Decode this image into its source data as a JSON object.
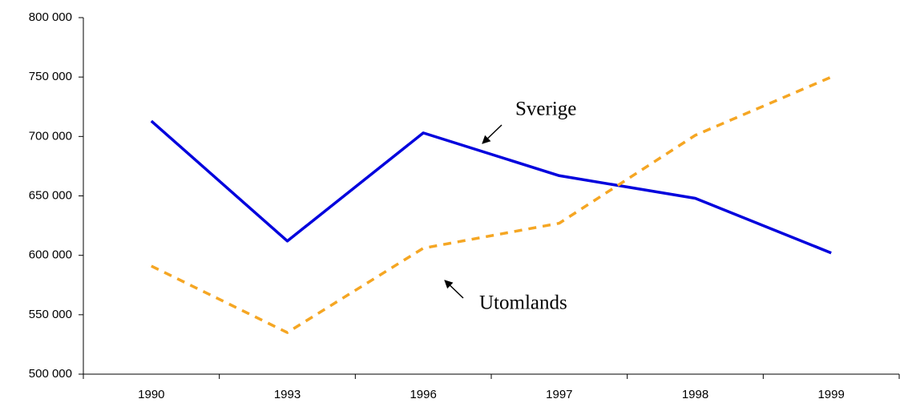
{
  "chart_data": {
    "type": "line",
    "categories": [
      "1990",
      "1993",
      "1996",
      "1997",
      "1998",
      "1999"
    ],
    "series": [
      {
        "name": "Sverige",
        "color": "#0000dd",
        "dash": false,
        "values": [
          713000,
          612000,
          703000,
          667000,
          648000,
          602000
        ]
      },
      {
        "name": "Utomlands",
        "color": "#f5a623",
        "dash": true,
        "values": [
          591000,
          535000,
          606000,
          627000,
          701000,
          750000
        ]
      }
    ],
    "ylim": [
      500000,
      800000
    ],
    "yticks": [
      {
        "value": 500000,
        "label": "500 000"
      },
      {
        "value": 550000,
        "label": "550 000"
      },
      {
        "value": 600000,
        "label": "600 000"
      },
      {
        "value": 650000,
        "label": "650 000"
      },
      {
        "value": 700000,
        "label": "700 000"
      },
      {
        "value": 750000,
        "label": "750 000"
      },
      {
        "value": 800000,
        "label": "800 000"
      }
    ],
    "grid": false,
    "annotations": [
      {
        "text": "Sverige"
      },
      {
        "text": "Utomlands"
      }
    ]
  }
}
